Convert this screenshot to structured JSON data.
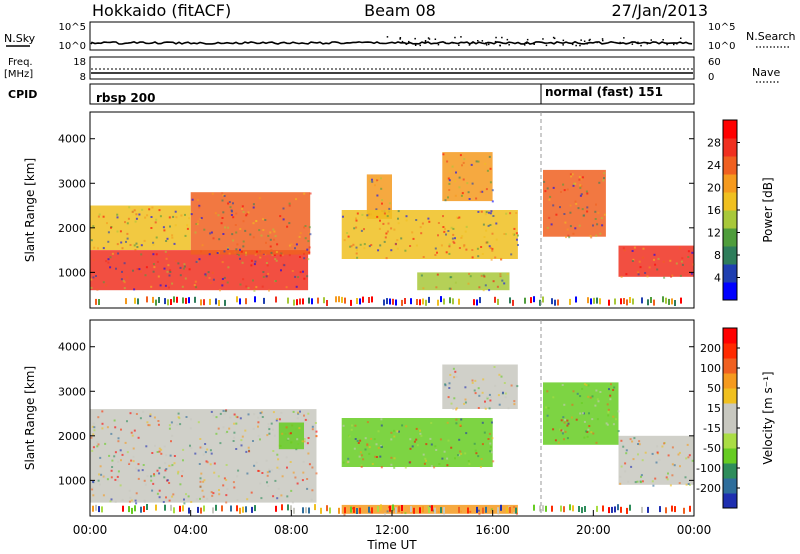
{
  "header": {
    "title_left": "Hokkaido (fitACF)",
    "title_center": "Beam 08",
    "title_right": "27/Jan/2013"
  },
  "summary_panels": {
    "left_labels": {
      "nsky": "N.Sky",
      "freq_line1": "Freq.",
      "freq_line2": "[MHz]",
      "cpid": "CPID"
    },
    "right_labels": {
      "nsearch": "N.Search",
      "nave": "Nave"
    },
    "nsky_ticks": {
      "top": "10^5",
      "bottom": "10^0"
    },
    "nsearch_ticks": {
      "top": "10^5",
      "bottom": "10^0"
    },
    "freq_ticks": {
      "top": "18",
      "bottom": "8"
    },
    "nave_ticks": {
      "top": "60",
      "bottom": "0"
    },
    "cpid_labels": [
      "rbsp 200",
      "normal (fast) 151"
    ]
  },
  "chart_data": [
    {
      "type": "heatmap",
      "name": "power",
      "ylabel": "Slant Range [km]",
      "xlabel": "",
      "xlim": [
        "00:00",
        "24:00"
      ],
      "ylim": [
        200,
        4600
      ],
      "y_ticks": [
        "1000",
        "2000",
        "3000",
        "4000"
      ],
      "colorbar": {
        "label": "Power [dB]",
        "ticks": [
          "4",
          "8",
          "12",
          "16",
          "20",
          "24",
          "28"
        ],
        "colors": [
          "#0000ff",
          "#1f3fb0",
          "#2e7d5b",
          "#4f9d3c",
          "#a8c83a",
          "#f0c020",
          "#f59a1e",
          "#f06020",
          "#f03020",
          "#ff0000"
        ]
      },
      "features": [
        {
          "start": "00:00",
          "end": "08:40",
          "range_low": 600,
          "range_high": 1500,
          "level": "28"
        },
        {
          "start": "04:00",
          "end": "08:45",
          "range_low": 1400,
          "range_high": 2800,
          "level": "24"
        },
        {
          "start": "00:00",
          "end": "04:00",
          "range_low": 1500,
          "range_high": 2500,
          "level": "16"
        },
        {
          "start": "11:00",
          "end": "12:00",
          "range_low": 2200,
          "range_high": 3200,
          "level": "20"
        },
        {
          "start": "14:00",
          "end": "16:00",
          "range_low": 2600,
          "range_high": 3700,
          "level": "20"
        },
        {
          "start": "18:00",
          "end": "20:30",
          "range_low": 1800,
          "range_high": 3300,
          "level": "24"
        },
        {
          "start": "21:00",
          "end": "24:00",
          "range_low": 900,
          "range_high": 1600,
          "level": "28"
        },
        {
          "start": "10:00",
          "end": "17:00",
          "range_low": 1300,
          "range_high": 2400,
          "level": "16"
        },
        {
          "start": "13:00",
          "end": "16:40",
          "range_low": 600,
          "range_high": 1000,
          "level": "12"
        }
      ]
    },
    {
      "type": "heatmap",
      "name": "velocity",
      "ylabel": "Slant Range [km]",
      "xlabel": "Time UT",
      "xlim": [
        "00:00",
        "24:00"
      ],
      "ylim": [
        200,
        4600
      ],
      "x_ticks": [
        "00:00",
        "04:00",
        "08:00",
        "12:00",
        "16:00",
        "20:00",
        "00:00"
      ],
      "y_ticks": [
        "1000",
        "2000",
        "3000",
        "4000"
      ],
      "colorbar": {
        "label": "Velocity [m s⁻¹]",
        "ticks": [
          "200",
          "100",
          "50",
          "15",
          "-15",
          "-50",
          "-100",
          "-200"
        ],
        "colors": [
          "#1f2fb0",
          "#2e6d9b",
          "#2e8d5b",
          "#66cc22",
          "#aadd44",
          "#c8c8c0",
          "#c8c8c0",
          "#f0c020",
          "#f59a1e",
          "#f06020",
          "#ff2a00",
          "#ff0000"
        ]
      },
      "features": [
        {
          "start": "00:00",
          "end": "09:00",
          "range_low": 500,
          "range_high": 2600,
          "value": "-15 to 15"
        },
        {
          "start": "07:30",
          "end": "08:30",
          "range_low": 1700,
          "range_high": 2300,
          "value": "50"
        },
        {
          "start": "10:00",
          "end": "16:00",
          "range_low": 1300,
          "range_high": 2400,
          "value": "50"
        },
        {
          "start": "18:00",
          "end": "21:00",
          "range_low": 1800,
          "range_high": 3200,
          "value": "50"
        },
        {
          "start": "14:00",
          "end": "17:00",
          "range_low": 2600,
          "range_high": 3600,
          "value": "-15 to 15"
        },
        {
          "start": "21:00",
          "end": "24:00",
          "range_low": 900,
          "range_high": 2000,
          "value": "-15 to 15"
        },
        {
          "start": "10:00",
          "end": "17:00",
          "range_low": 250,
          "range_high": 450,
          "value": "-50"
        }
      ]
    }
  ]
}
